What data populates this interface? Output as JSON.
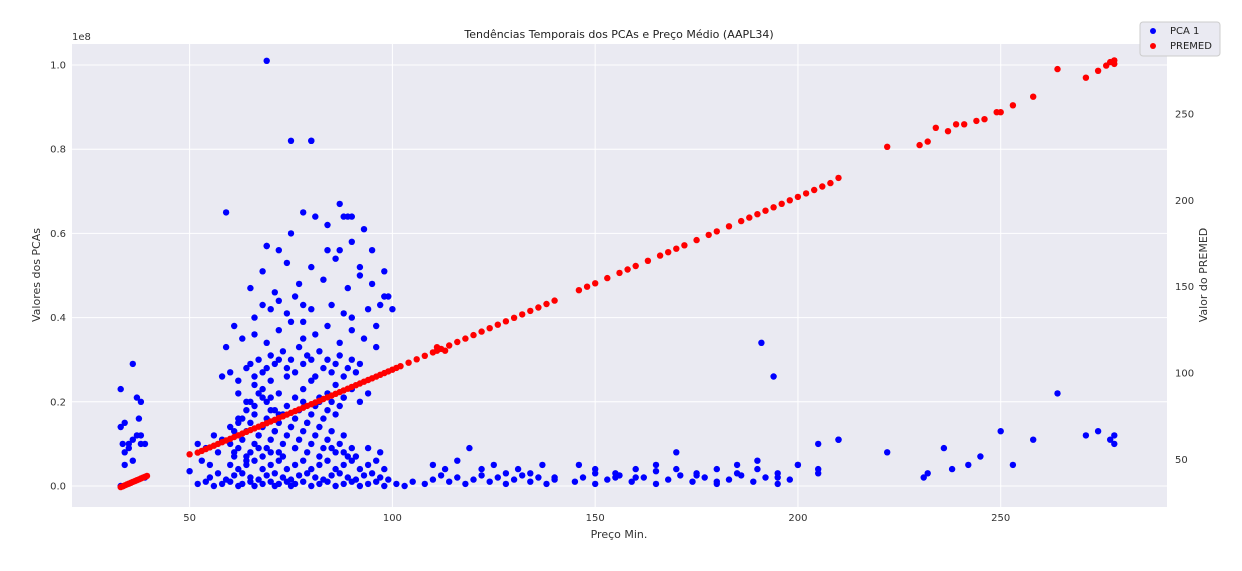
{
  "chart_data": {
    "type": "scatter",
    "title": "Tendências Temporais dos PCAs e Preço Médio (AAPL34)",
    "xlabel": "Preço Min.",
    "ylabel": "Valores dos PCAs",
    "ylabel_right": "Valor do PREMED",
    "y_offset_text": "1e8",
    "xlim": [
      21,
      291
    ],
    "ylim": [
      -0.05,
      1.05
    ],
    "ylim_right": [
      22.5,
      290.5
    ],
    "x_ticks": [
      50,
      100,
      150,
      200,
      250
    ],
    "y_ticks": [
      0.0,
      0.2,
      0.4,
      0.6,
      0.8,
      1.0
    ],
    "y_tick_labels": [
      "0.0",
      "0.2",
      "0.4",
      "0.6",
      "0.8",
      "1.0"
    ],
    "y_right_ticks": [
      50,
      100,
      150,
      200,
      250
    ],
    "grid": true,
    "background": "#eaeaf2",
    "legend_position": "top-right",
    "series": [
      {
        "name": "PCA 1",
        "axis": "left",
        "color": "#0000ff",
        "x": [
          33,
          33,
          33.5,
          34,
          34,
          35,
          36,
          36,
          37,
          37,
          37.5,
          38,
          38,
          39,
          39,
          33,
          34,
          35,
          36,
          38,
          50,
          52,
          53,
          54,
          55,
          56,
          57,
          58,
          60,
          61,
          62,
          63,
          64,
          65,
          66,
          67,
          68,
          69,
          70,
          71,
          72,
          52,
          54,
          56,
          58,
          60,
          62,
          63,
          65,
          66,
          68,
          70,
          71,
          72,
          74,
          75,
          76,
          78,
          80,
          82,
          84,
          86,
          88,
          90,
          92,
          94,
          96,
          98,
          55,
          57,
          59,
          61,
          63,
          65,
          67,
          69,
          71,
          73,
          75,
          77,
          79,
          81,
          83,
          85,
          87,
          89,
          91,
          93,
          95,
          97,
          99,
          60,
          61,
          62,
          63,
          64,
          65,
          66,
          67,
          68,
          69,
          70,
          71,
          72,
          73,
          74,
          75,
          76,
          77,
          78,
          79,
          80,
          81,
          82,
          83,
          84,
          85,
          86,
          87,
          88,
          89,
          90,
          60,
          62,
          64,
          65,
          66,
          67,
          68,
          69,
          70,
          71,
          72,
          73,
          74,
          75,
          76,
          77,
          78,
          79,
          80,
          81,
          82,
          83,
          84,
          85,
          86,
          87,
          88,
          62,
          64,
          66,
          68,
          70,
          72,
          74,
          76,
          78,
          80,
          82,
          84,
          86,
          88,
          90,
          92,
          94,
          58,
          60,
          62,
          64,
          65,
          66,
          67,
          68,
          69,
          70,
          71,
          72,
          73,
          74,
          75,
          76,
          77,
          78,
          79,
          80,
          81,
          82,
          83,
          84,
          85,
          86,
          87,
          88,
          89,
          90,
          91,
          92,
          59,
          61,
          63,
          66,
          69,
          72,
          75,
          78,
          81,
          84,
          87,
          90,
          93,
          96,
          62,
          64,
          66,
          68,
          70,
          72,
          74,
          76,
          78,
          80,
          82,
          84,
          86,
          88,
          90,
          92,
          94,
          96,
          98,
          61,
          64,
          67,
          70,
          73,
          76,
          79,
          82,
          85,
          88,
          91,
          94,
          97,
          66,
          68,
          70,
          72,
          74,
          76,
          78,
          80,
          85,
          88,
          90,
          94,
          96,
          98,
          100,
          65,
          68,
          71,
          74,
          77,
          80,
          83,
          86,
          89,
          92,
          95,
          98,
          69,
          72,
          75,
          78,
          81,
          84,
          87,
          90,
          93,
          59,
          69,
          75,
          78,
          80,
          84,
          87,
          88,
          89,
          90,
          92,
          95,
          97,
          99,
          108,
          110,
          112,
          114,
          116,
          118,
          120,
          122,
          124,
          126,
          128,
          130,
          132,
          134,
          136,
          138,
          140,
          110,
          113,
          116,
          119,
          122,
          125,
          128,
          131,
          134,
          137,
          140,
          145,
          147,
          150,
          153,
          156,
          159,
          162,
          165,
          168,
          171,
          174,
          177,
          180,
          183,
          186,
          189,
          192,
          195,
          198,
          146,
          150,
          155,
          160,
          165,
          170,
          175,
          180,
          185,
          190,
          195,
          200,
          205,
          160,
          170,
          180,
          190,
          200,
          205,
          210,
          191,
          194,
          210,
          222,
          231,
          232,
          236,
          238,
          242,
          245,
          250,
          253,
          258,
          264,
          271,
          274,
          277,
          278,
          278,
          150,
          155,
          165,
          175,
          185,
          195,
          205,
          101,
          103,
          105
        ],
        "y": [
          0.14,
          0.23,
          0.1,
          0.15,
          0.05,
          0.09,
          0.11,
          0.29,
          0.21,
          0.12,
          0.16,
          0.2,
          0.1,
          0.02,
          0.1,
          0.0,
          0.08,
          0.1,
          0.06,
          0.12,
          0.035,
          0.1,
          0.06,
          0.09,
          0.05,
          0.12,
          0.08,
          0.11,
          0.1,
          0.13,
          0.15,
          0.16,
          0.18,
          0.2,
          0.19,
          0.22,
          0.21,
          0.2,
          0.21,
          0.18,
          0.17,
          0.005,
          0.01,
          0.0,
          0.005,
          0.01,
          0.0,
          0.005,
          0.01,
          0.0,
          0.005,
          0.01,
          0.0,
          0.005,
          0.01,
          0.0,
          0.005,
          0.01,
          0.0,
          0.005,
          0.01,
          0.0,
          0.005,
          0.01,
          0.0,
          0.005,
          0.01,
          0.0,
          0.02,
          0.03,
          0.015,
          0.025,
          0.03,
          0.02,
          0.015,
          0.025,
          0.03,
          0.02,
          0.015,
          0.025,
          0.03,
          0.02,
          0.015,
          0.025,
          0.03,
          0.02,
          0.015,
          0.025,
          0.03,
          0.02,
          0.015,
          0.05,
          0.07,
          0.09,
          0.11,
          0.06,
          0.08,
          0.1,
          0.12,
          0.07,
          0.09,
          0.11,
          0.13,
          0.08,
          0.1,
          0.12,
          0.14,
          0.09,
          0.11,
          0.13,
          0.15,
          0.1,
          0.12,
          0.14,
          0.09,
          0.11,
          0.13,
          0.08,
          0.1,
          0.12,
          0.07,
          0.09,
          0.14,
          0.16,
          0.13,
          0.15,
          0.17,
          0.12,
          0.14,
          0.16,
          0.18,
          0.13,
          0.15,
          0.17,
          0.19,
          0.14,
          0.16,
          0.18,
          0.2,
          0.15,
          0.17,
          0.19,
          0.21,
          0.16,
          0.18,
          0.2,
          0.17,
          0.19,
          0.21,
          0.22,
          0.2,
          0.24,
          0.23,
          0.25,
          0.22,
          0.26,
          0.21,
          0.23,
          0.25,
          0.2,
          0.22,
          0.24,
          0.21,
          0.23,
          0.2,
          0.22,
          0.26,
          0.27,
          0.25,
          0.28,
          0.29,
          0.26,
          0.3,
          0.27,
          0.28,
          0.31,
          0.29,
          0.3,
          0.32,
          0.28,
          0.3,
          0.27,
          0.33,
          0.29,
          0.31,
          0.3,
          0.26,
          0.32,
          0.28,
          0.3,
          0.27,
          0.29,
          0.31,
          0.26,
          0.28,
          0.3,
          0.27,
          0.29,
          0.33,
          0.38,
          0.35,
          0.36,
          0.34,
          0.37,
          0.39,
          0.35,
          0.36,
          0.38,
          0.34,
          0.37,
          0.35,
          0.33,
          0.04,
          0.05,
          0.06,
          0.04,
          0.05,
          0.06,
          0.04,
          0.05,
          0.06,
          0.04,
          0.05,
          0.06,
          0.04,
          0.05,
          0.06,
          0.04,
          0.05,
          0.06,
          0.04,
          0.08,
          0.07,
          0.09,
          0.08,
          0.07,
          0.09,
          0.08,
          0.07,
          0.09,
          0.08,
          0.07,
          0.09,
          0.08,
          0.4,
          0.43,
          0.42,
          0.44,
          0.41,
          0.45,
          0.39,
          0.42,
          0.43,
          0.41,
          0.4,
          0.42,
          0.38,
          0.45,
          0.42,
          0.47,
          0.51,
          0.46,
          0.53,
          0.48,
          0.52,
          0.49,
          0.54,
          0.47,
          0.5,
          0.48,
          0.51,
          0.57,
          0.56,
          0.6,
          0.65,
          0.64,
          0.62,
          0.56,
          0.58,
          0.61,
          0.65,
          0.57,
          0.82,
          0.43,
          0.82,
          0.56,
          0.67,
          0.64,
          0.64,
          0.64,
          0.52,
          0.56,
          0.43,
          0.45,
          0.005,
          0.015,
          0.025,
          0.01,
          0.02,
          0.005,
          0.015,
          0.025,
          0.01,
          0.02,
          0.005,
          0.015,
          0.025,
          0.01,
          0.02,
          0.005,
          0.015,
          0.05,
          0.04,
          0.06,
          0.09,
          0.04,
          0.05,
          0.03,
          0.04,
          0.03,
          0.05,
          0.02,
          0.01,
          0.02,
          0.005,
          0.015,
          0.025,
          0.01,
          0.02,
          0.005,
          0.015,
          0.025,
          0.01,
          0.02,
          0.005,
          0.015,
          0.025,
          0.01,
          0.02,
          0.005,
          0.015,
          0.05,
          0.04,
          0.03,
          0.04,
          0.05,
          0.04,
          0.03,
          0.04,
          0.05,
          0.04,
          0.03,
          0.05,
          0.04,
          0.02,
          0.08,
          0.01,
          0.06,
          0.05,
          0.1,
          0.11,
          0.34,
          0.26,
          0.11,
          0.08,
          0.02,
          0.03,
          0.09,
          0.04,
          0.05,
          0.07,
          0.13,
          0.05,
          0.11,
          0.22,
          0.12,
          0.13,
          0.11,
          0.1,
          0.12,
          0.03,
          0.02,
          0.035,
          0.025,
          0.03,
          0.02,
          0.03,
          0.005,
          0.0,
          0.01
        ],
        "outlier_x": [
          69,
          80
        ],
        "outlier_y": [
          1.01,
          0.82
        ]
      },
      {
        "name": "PREMED",
        "axis": "right",
        "color": "#ff0000",
        "x": [
          33,
          33.5,
          34,
          34.5,
          35,
          35.5,
          36,
          36.5,
          37,
          37.5,
          38,
          38.5,
          39,
          39.5,
          50,
          52,
          53,
          54,
          55,
          56,
          57,
          58,
          59,
          60,
          61,
          62,
          63,
          64,
          65,
          66,
          67,
          68,
          69,
          70,
          71,
          72,
          73,
          74,
          75,
          76,
          77,
          78,
          79,
          80,
          81,
          82,
          83,
          84,
          85,
          86,
          87,
          88,
          89,
          90,
          91,
          92,
          93,
          94,
          95,
          96,
          97,
          98,
          99,
          100,
          101,
          102,
          104,
          106,
          108,
          110,
          111,
          112,
          114,
          116,
          118,
          120,
          122,
          124,
          126,
          128,
          130,
          132,
          134,
          136,
          138,
          140,
          111,
          113,
          146,
          148,
          150,
          153,
          156,
          158,
          160,
          163,
          166,
          168,
          170,
          172,
          175,
          178,
          180,
          183,
          186,
          188,
          190,
          192,
          194,
          196,
          198,
          200,
          202,
          204,
          206,
          208,
          210,
          222,
          230,
          232,
          234,
          237,
          239,
          241,
          244,
          246,
          249,
          250,
          253,
          258,
          264,
          271,
          274,
          276,
          277,
          278,
          278
        ],
        "y": [
          34,
          34.5,
          35,
          35.5,
          36,
          36.5,
          37,
          37.5,
          38,
          38.5,
          39,
          39.5,
          40,
          40.5,
          53,
          54,
          55,
          56,
          57,
          58,
          59,
          60,
          61,
          62,
          63,
          64,
          65,
          66,
          67,
          68,
          69,
          70,
          71,
          72,
          73,
          74,
          75,
          76,
          77,
          78,
          79,
          80,
          81,
          82,
          83,
          84,
          85,
          86,
          87,
          88,
          89,
          90,
          91,
          92,
          93,
          94,
          95,
          96,
          97,
          98,
          99,
          100,
          101,
          102,
          103,
          104,
          106,
          108,
          110,
          112,
          113,
          114,
          116,
          118,
          120,
          122,
          124,
          126,
          128,
          130,
          132,
          134,
          136,
          138,
          140,
          142,
          115,
          113,
          148,
          150,
          152,
          155,
          158,
          160,
          162,
          165,
          168,
          170,
          172,
          174,
          177,
          180,
          182,
          185,
          188,
          190,
          192,
          194,
          196,
          198,
          200,
          202,
          204,
          206,
          208,
          210,
          213,
          231,
          232,
          234,
          242,
          240,
          244,
          244,
          246,
          247,
          251,
          251,
          255,
          260,
          276,
          271,
          275,
          278,
          280,
          279,
          281
        ]
      }
    ]
  }
}
